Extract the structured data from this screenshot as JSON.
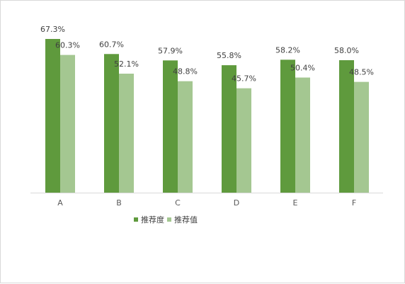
{
  "chart_data": {
    "type": "bar",
    "categories": [
      "A",
      "B",
      "C",
      "D",
      "E",
      "F"
    ],
    "series": [
      {
        "name": "推荐度",
        "color": "#5f9a3d",
        "values": [
          67.3,
          60.7,
          57.9,
          55.8,
          58.2,
          58.0
        ],
        "labels": [
          "67.3%",
          "60.7%",
          "57.9%",
          "55.8%",
          "58.2%",
          "58.0%"
        ]
      },
      {
        "name": "推荐值",
        "color": "#a4c791",
        "values": [
          60.3,
          52.1,
          48.8,
          45.7,
          50.4,
          48.5
        ],
        "labels": [
          "60.3%",
          "52.1%",
          "48.8%",
          "45.7%",
          "50.4%",
          "48.5%"
        ]
      }
    ],
    "title": "",
    "xlabel": "",
    "ylabel": "",
    "ylim": [
      0,
      67.3
    ],
    "grid": false,
    "legend_position": "bottom"
  }
}
